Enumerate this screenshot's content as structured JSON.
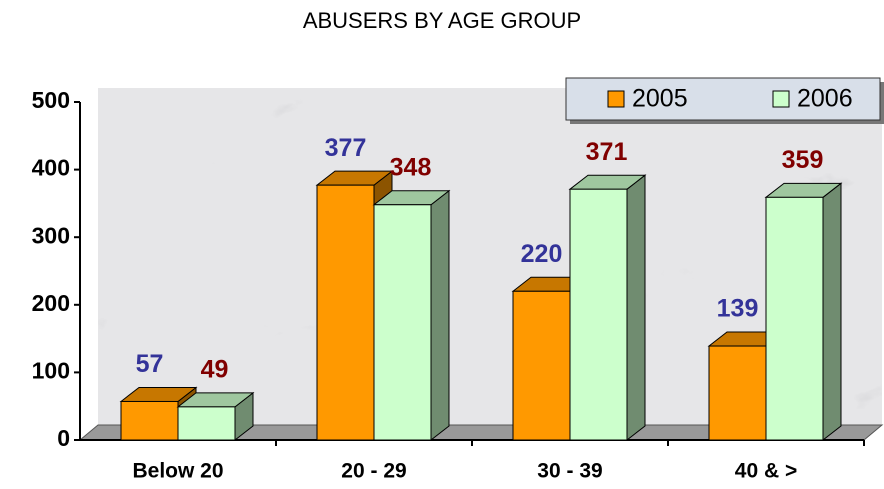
{
  "chart_data": {
    "type": "bar3d",
    "title": "ABUSERS BY AGE GROUP",
    "categories": [
      "Below 20",
      "20 - 29",
      "30 - 39",
      "40 & >"
    ],
    "series": [
      {
        "name": "2005",
        "color": "#ff9900",
        "label_color": "#333399",
        "values": [
          57,
          377,
          220,
          139
        ]
      },
      {
        "name": "2006",
        "color": "#ccffcc",
        "label_color": "#800000",
        "values": [
          49,
          348,
          371,
          359
        ]
      }
    ],
    "ylim": [
      0,
      500
    ],
    "yticks": [
      0,
      100,
      200,
      300,
      400,
      500
    ],
    "legend": "top-right"
  }
}
